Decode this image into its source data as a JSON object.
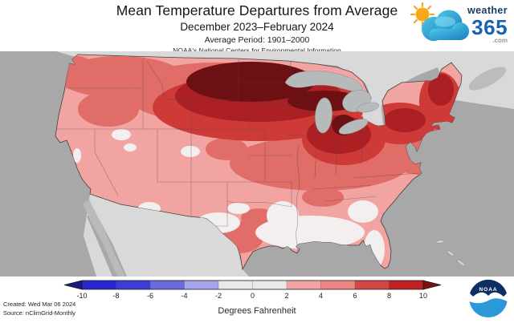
{
  "header": {
    "title": "Mean Temperature Departures from Average",
    "subtitle": "December 2023–February 2024",
    "average_period": "Average Period: 1901–2000",
    "organization": "NOAA's National Centers for Environmental Information"
  },
  "branding": {
    "weather365": {
      "word": "weather",
      "number": "365",
      "tld": ".com"
    },
    "noaa_emblem_text": "NOAA"
  },
  "footer": {
    "created": "Created: Wed Mar 06 2024",
    "source": "Source: nClimGrid-Monthly"
  },
  "colorbar": {
    "unit_label": "Degrees Fahrenheit"
  },
  "colors": {
    "ocean": "#a8a8a8",
    "foreign_land": "#d9d9d9",
    "baja": "#bababa",
    "lake": "#b6baba",
    "state_line": "#4a4a4a",
    "outline": "#3f3f3f",
    "anom_white": "#f3efee",
    "anom_pink": "#f1a4a1",
    "anom_med": "#e06d68",
    "anom_strong": "#cd3a38",
    "anom_dark": "#ac2023",
    "anom_maroon": "#6d1013"
  },
  "chart_data": {
    "type": "heatmap",
    "subtype": "choropleth-map-contiguous-us",
    "title": "Mean Temperature Departures from Average",
    "period": "December 2023–February 2024",
    "baseline_period": "1901–2000",
    "units": "Degrees Fahrenheit",
    "data_source": "nClimGrid-Monthly",
    "created": "Wed Mar 06 2024",
    "legend": {
      "orientation": "horizontal",
      "ticks": [
        -10,
        -8,
        -6,
        -4,
        -2,
        0,
        2,
        4,
        6,
        8,
        10
      ],
      "segment_colors": [
        "#2727cd",
        "#3c3cd6",
        "#6b6be0",
        "#a5a5ec",
        "#e9e9e9",
        "#e9e9e9",
        "#f1a5a3",
        "#eb8581",
        "#d24744",
        "#c02022"
      ],
      "left_arrow_color": "#1a1a82",
      "right_arrow_color": "#7c0f10"
    },
    "regions": [
      {
        "region": "Upper Midwest core (eastern ND, MN, WI, upper MI)",
        "departure_f": "+8 to +10 and above"
      },
      {
        "region": "Northern Plains and Great Lakes (ND, SD, IA, lower MI, upstate NY, ME)",
        "departure_f": "+6 to +8"
      },
      {
        "region": "Montana, Nebraska, Illinois, Ohio Valley, interior Northeast",
        "departure_f": "+4 to +6"
      },
      {
        "region": "West Coast, Great Basin, Texas, central Plains, Mid-Atlantic",
        "departure_f": "+2 to +4"
      },
      {
        "region": "Gulf Coast, Deep South, Florida, spots in NV/UT/AZ/NM",
        "departure_f": "0 to +2"
      },
      {
        "region": "Areas below average",
        "departure_f": "none shown"
      }
    ]
  }
}
